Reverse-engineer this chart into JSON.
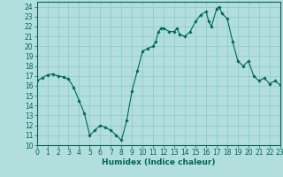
{
  "x": [
    0,
    0.5,
    1,
    1.5,
    2,
    2.5,
    3,
    3.5,
    4,
    4.5,
    5,
    5.5,
    6,
    6.5,
    7,
    7.5,
    8,
    8.5,
    9,
    9.5,
    10,
    10.5,
    11,
    11.25,
    11.5,
    11.75,
    12,
    12.5,
    13,
    13.25,
    13.5,
    14,
    14.5,
    15,
    15.5,
    16,
    16.25,
    16.5,
    17,
    17.25,
    17.5,
    18,
    18.5,
    19,
    19.5,
    20,
    20.5,
    21,
    21.5,
    22,
    22.5,
    23
  ],
  "y": [
    16.5,
    16.8,
    17.1,
    17.2,
    17.0,
    16.9,
    16.7,
    15.8,
    14.5,
    13.2,
    11.0,
    11.5,
    12.0,
    11.8,
    11.5,
    11.0,
    10.5,
    12.5,
    15.5,
    17.5,
    19.5,
    19.8,
    20.0,
    20.5,
    21.5,
    21.8,
    21.8,
    21.5,
    21.5,
    21.8,
    21.2,
    21.0,
    21.5,
    22.5,
    23.2,
    23.5,
    22.5,
    22.0,
    23.8,
    24.0,
    23.3,
    22.8,
    20.5,
    18.5,
    18.0,
    18.5,
    17.0,
    16.5,
    16.8,
    16.2,
    16.5,
    16.1
  ],
  "xlabel": "Humidex (Indice chaleur)",
  "ylabel_ticks": [
    10,
    11,
    12,
    13,
    14,
    15,
    16,
    17,
    18,
    19,
    20,
    21,
    22,
    23,
    24
  ],
  "xtick_labels": [
    "0",
    "1",
    "2",
    "3",
    "4",
    "5",
    "6",
    "7",
    "8",
    "9",
    "10",
    "11",
    "12",
    "13",
    "14",
    "15",
    "16",
    "17",
    "18",
    "19",
    "20",
    "21",
    "22",
    "23"
  ],
  "xlim": [
    0,
    23
  ],
  "ylim": [
    10,
    24.5
  ],
  "bg_color": "#b2dede",
  "grid_color": "#8ec8c8",
  "line_color": "#006655",
  "marker_color": "#006655"
}
